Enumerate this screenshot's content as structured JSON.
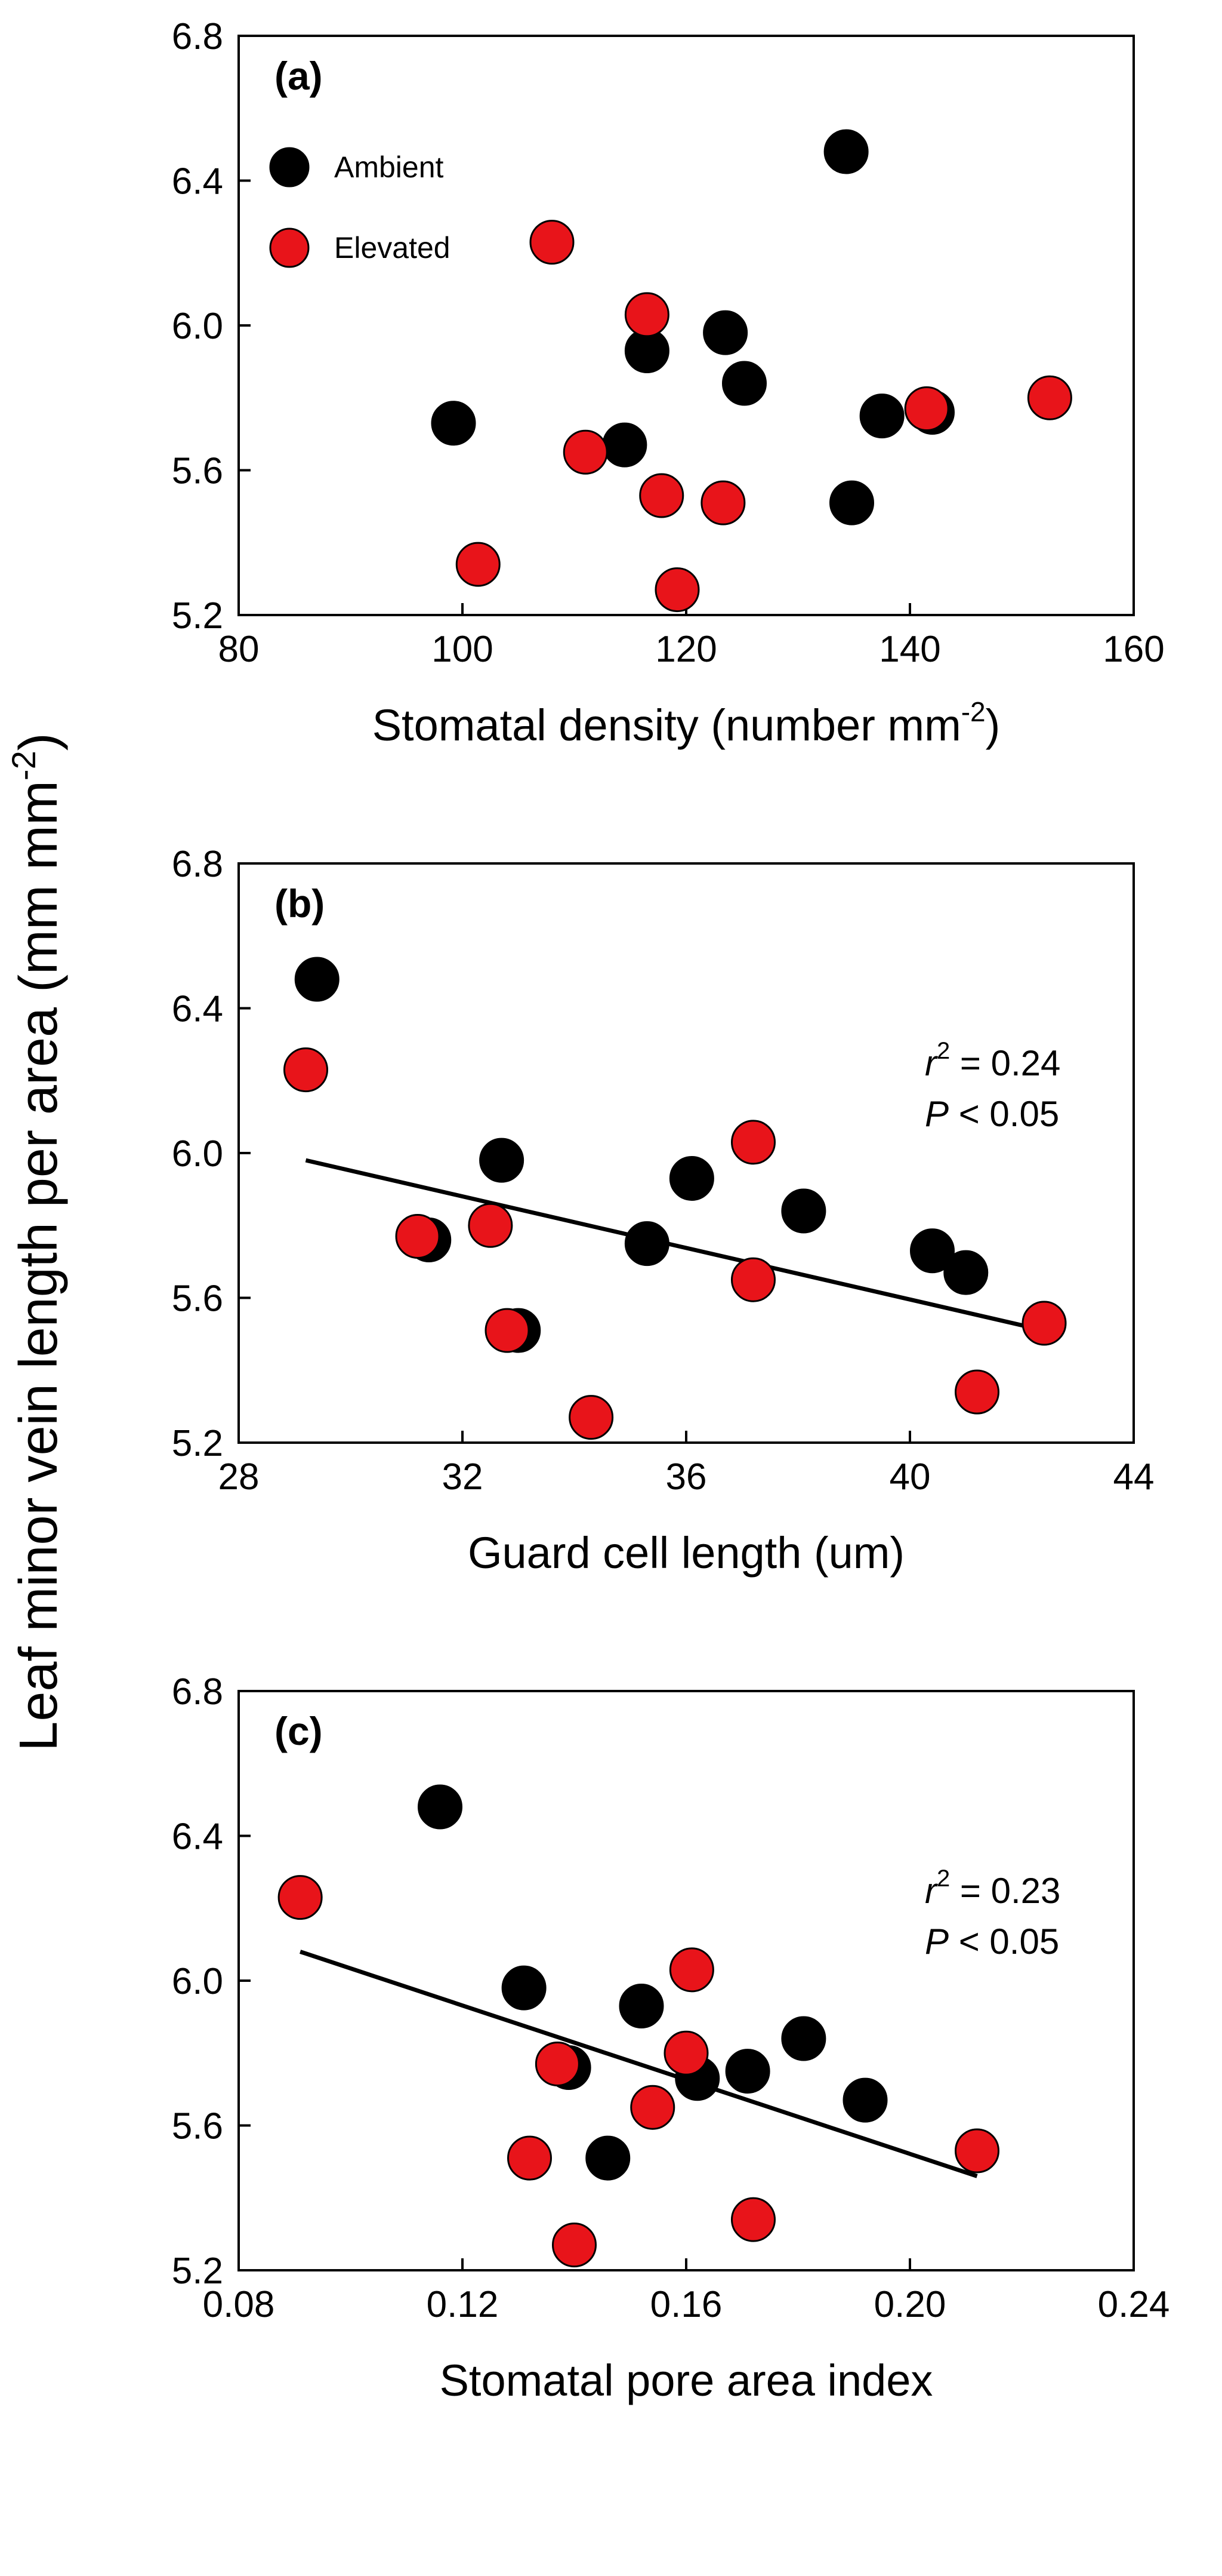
{
  "figure": {
    "shared_ylabel_main": "Leaf minor vein length per area (mm mm",
    "shared_ylabel_sup": "-2",
    "shared_ylabel_end": ")"
  },
  "chart_data": [
    {
      "type": "scatter",
      "panel": "(a)",
      "xlabel_main": "Stomatal density (number mm",
      "xlabel_sup": "-2",
      "xlabel_end": ")",
      "xlim": [
        80,
        160
      ],
      "xticks": [
        80,
        100,
        120,
        140,
        160
      ],
      "xtick_labels": [
        "80",
        "100",
        "120",
        "140",
        "160"
      ],
      "ylim": [
        5.2,
        6.8
      ],
      "yticks": [
        5.2,
        5.6,
        6.0,
        6.4,
        6.8
      ],
      "ytick_labels": [
        "5.2",
        "5.6",
        "6.0",
        "6.4",
        "6.8"
      ],
      "legend": [
        {
          "label": "Ambient",
          "color": "#000000"
        },
        {
          "label": "Elevated",
          "color": "#e8141a"
        }
      ],
      "series": [
        {
          "name": "Ambient",
          "color": "#000000",
          "points": [
            [
              99.2,
              5.73
            ],
            [
              114.5,
              5.67
            ],
            [
              116.5,
              5.93
            ],
            [
              123.5,
              5.98
            ],
            [
              125.2,
              5.84
            ],
            [
              134.3,
              6.48
            ],
            [
              134.8,
              5.51
            ],
            [
              137.5,
              5.75
            ],
            [
              142,
              5.76
            ]
          ]
        },
        {
          "name": "Elevated",
          "color": "#e8141a",
          "points": [
            [
              101.4,
              5.34
            ],
            [
              108,
              6.23
            ],
            [
              111,
              5.65
            ],
            [
              116.5,
              6.03
            ],
            [
              117.8,
              5.53
            ],
            [
              119.2,
              5.27
            ],
            [
              123.3,
              5.51
            ],
            [
              141.5,
              5.77
            ],
            [
              152.5,
              5.8
            ]
          ]
        }
      ],
      "fit": null,
      "stats": null
    },
    {
      "type": "scatter",
      "panel": "(b)",
      "xlabel_main": "Guard cell length (um)",
      "xlabel_sup": "",
      "xlabel_end": "",
      "xlim": [
        28,
        44
      ],
      "xticks": [
        28,
        32,
        36,
        40,
        44
      ],
      "xtick_labels": [
        "28",
        "32",
        "36",
        "40",
        "44"
      ],
      "ylim": [
        5.2,
        6.8
      ],
      "yticks": [
        5.2,
        5.6,
        6.0,
        6.4,
        6.8
      ],
      "ytick_labels": [
        "5.2",
        "5.6",
        "6.0",
        "6.4",
        "6.8"
      ],
      "legend": null,
      "series": [
        {
          "name": "Ambient",
          "color": "#000000",
          "points": [
            [
              29.4,
              6.48
            ],
            [
              31.4,
              5.76
            ],
            [
              32.7,
              5.98
            ],
            [
              33,
              5.51
            ],
            [
              35.3,
              5.75
            ],
            [
              36.1,
              5.93
            ],
            [
              38.1,
              5.84
            ],
            [
              40.4,
              5.73
            ],
            [
              41,
              5.67
            ]
          ]
        },
        {
          "name": "Elevated",
          "color": "#e8141a",
          "points": [
            [
              29.2,
              6.23
            ],
            [
              31.2,
              5.77
            ],
            [
              32.5,
              5.8
            ],
            [
              32.8,
              5.51
            ],
            [
              34.3,
              5.27
            ],
            [
              37.2,
              6.03
            ],
            [
              37.2,
              5.65
            ],
            [
              41.2,
              5.34
            ],
            [
              42.4,
              5.53
            ]
          ]
        }
      ],
      "fit": {
        "x": [
          29.2,
          42.4
        ],
        "y": [
          5.98,
          5.51
        ]
      },
      "stats": {
        "r2_symbol": "r",
        "r2_sup": "2",
        "r2_text": " = 0.24",
        "p_symbol": "P",
        "p_text": " < 0.05"
      }
    },
    {
      "type": "scatter",
      "panel": "(c)",
      "xlabel_main": "Stomatal pore area index",
      "xlabel_sup": "",
      "xlabel_end": "",
      "xlim": [
        0.08,
        0.24
      ],
      "xticks": [
        0.08,
        0.12,
        0.16,
        0.2,
        0.24
      ],
      "xtick_labels": [
        "0.08",
        "0.12",
        "0.16",
        "0.20",
        "0.24"
      ],
      "ylim": [
        5.2,
        6.8
      ],
      "yticks": [
        5.2,
        5.6,
        6.0,
        6.4,
        6.8
      ],
      "ytick_labels": [
        "5.2",
        "5.6",
        "6.0",
        "6.4",
        "6.8"
      ],
      "legend": null,
      "series": [
        {
          "name": "Ambient",
          "color": "#000000",
          "points": [
            [
              0.116,
              6.48
            ],
            [
              0.131,
              5.98
            ],
            [
              0.139,
              5.76
            ],
            [
              0.146,
              5.51
            ],
            [
              0.152,
              5.93
            ],
            [
              0.162,
              5.73
            ],
            [
              0.171,
              5.75
            ],
            [
              0.181,
              5.84
            ],
            [
              0.192,
              5.67
            ]
          ]
        },
        {
          "name": "Elevated",
          "color": "#e8141a",
          "points": [
            [
              0.091,
              6.23
            ],
            [
              0.132,
              5.51
            ],
            [
              0.137,
              5.77
            ],
            [
              0.14,
              5.27
            ],
            [
              0.154,
              5.65
            ],
            [
              0.16,
              5.8
            ],
            [
              0.161,
              6.03
            ],
            [
              0.172,
              5.34
            ],
            [
              0.212,
              5.53
            ]
          ]
        }
      ],
      "fit": {
        "x": [
          0.091,
          0.212
        ],
        "y": [
          6.08,
          5.46
        ]
      },
      "stats": {
        "r2_symbol": "r",
        "r2_sup": "2",
        "r2_text": " = 0.23",
        "p_symbol": "P",
        "p_text": " < 0.05"
      }
    }
  ]
}
